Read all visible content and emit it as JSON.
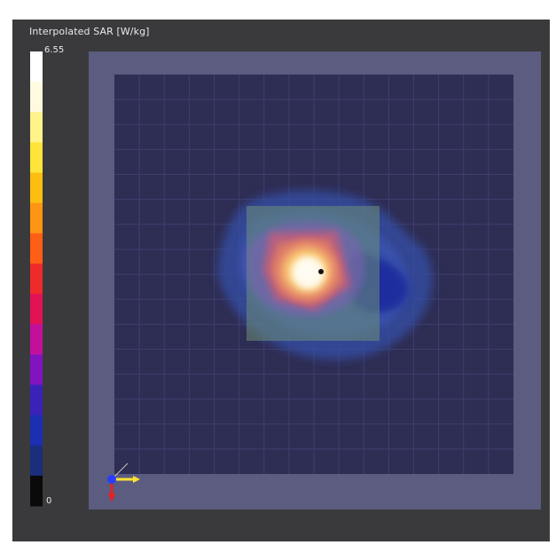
{
  "legend": {
    "title": "Interpolated SAR [W/kg]",
    "max_label": "6.55",
    "min_label": "0",
    "max_value": 6.55,
    "min_value": 0,
    "colors": [
      "#ffffff",
      "#fffae0",
      "#fff38a",
      "#ffe43a",
      "#ffbd12",
      "#ff9512",
      "#ff5f14",
      "#ee2a2a",
      "#e21255",
      "#c2109b",
      "#8214c0",
      "#3a22b8",
      "#1c2fb2",
      "#1a2e7c",
      "#0a0a0a"
    ]
  },
  "scene": {
    "background_color": "#3a3a3c",
    "outer_plate_color": "#5b5c80",
    "inner_plate_color": "#2e2d54",
    "grid_color": "#4a4a78",
    "zoom_region_color": "#6e8f78",
    "probe_point_color": "#111111"
  },
  "axes_gizmo": {
    "icon": "axes-triad-icon",
    "x_color": "#ffe033",
    "y_color": "#2a3cff",
    "z_color": "#e82020"
  }
}
